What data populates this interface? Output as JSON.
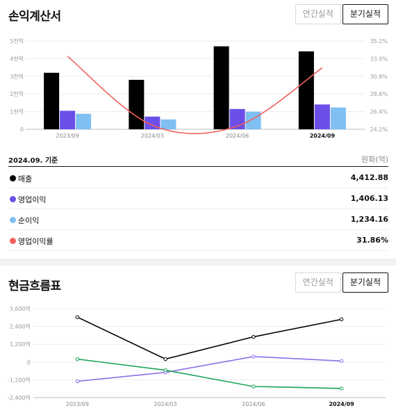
{
  "income": {
    "title": "손익계산서",
    "tabs": [
      "연간실적",
      "분기실적"
    ],
    "active_tab": 1,
    "basis": "2024.09. 기준",
    "unit": "원화(억)",
    "legend": [
      {
        "name": "매출",
        "color": "#000000",
        "value": "4,412.88"
      },
      {
        "name": "영업이익",
        "color": "#6b4fe8",
        "value": "1,406.13"
      },
      {
        "name": "순이익",
        "color": "#7fbff2",
        "value": "1,234.16"
      },
      {
        "name": "영업이익률",
        "color": "#f25f5c",
        "value": "31.86%"
      }
    ]
  },
  "chart_data": [
    {
      "type": "bar",
      "categories": [
        "2023/09",
        "2024/03",
        "2024/06",
        "2024/09"
      ],
      "highlight_category": 3,
      "y_tick_labels": [
        "0",
        "1천억",
        "2천억",
        "3천억",
        "4천억",
        "5천억"
      ],
      "ylim": [
        0,
        5000
      ],
      "y2_tick_labels": [
        "24.2%",
        "26.4%",
        "28.6%",
        "30.8%",
        "33.0%",
        "35.2%"
      ],
      "y2lim": [
        24.2,
        35.2
      ],
      "series": [
        {
          "name": "매출",
          "color": "#000000",
          "values": [
            3200,
            2800,
            4700,
            4412.88
          ]
        },
        {
          "name": "영업이익",
          "color": "#6b4fe8",
          "values": [
            1050,
            720,
            1150,
            1406.13
          ]
        },
        {
          "name": "순이익",
          "color": "#7fbff2",
          "values": [
            880,
            560,
            1000,
            1234.16
          ]
        },
        {
          "name": "영업이익률",
          "color": "#f25f5c",
          "axis": "right",
          "values": [
            33.3,
            24.7,
            24.6,
            31.86
          ]
        }
      ]
    },
    {
      "type": "line",
      "categories": [
        "2023/09",
        "2024/03",
        "2024/06",
        "2024/09"
      ],
      "highlight_category": 3,
      "y_tick_labels": [
        "-2,400억",
        "-1,200억",
        "0",
        "1,200억",
        "2,400억",
        "3,600억"
      ],
      "ylim": [
        -2400,
        3600
      ],
      "series": [
        {
          "color": "#000000",
          "values": [
            3030,
            200,
            1700,
            2880
          ]
        },
        {
          "color": "#8e6ee8",
          "values": [
            -1300,
            -700,
            370,
            70
          ]
        },
        {
          "color": "#1aa35a",
          "values": [
            200,
            -550,
            -1650,
            -1780
          ]
        }
      ]
    }
  ],
  "cash": {
    "title": "현금흐름표",
    "tabs": [
      "연간실적",
      "분기실적"
    ],
    "active_tab": 1
  }
}
